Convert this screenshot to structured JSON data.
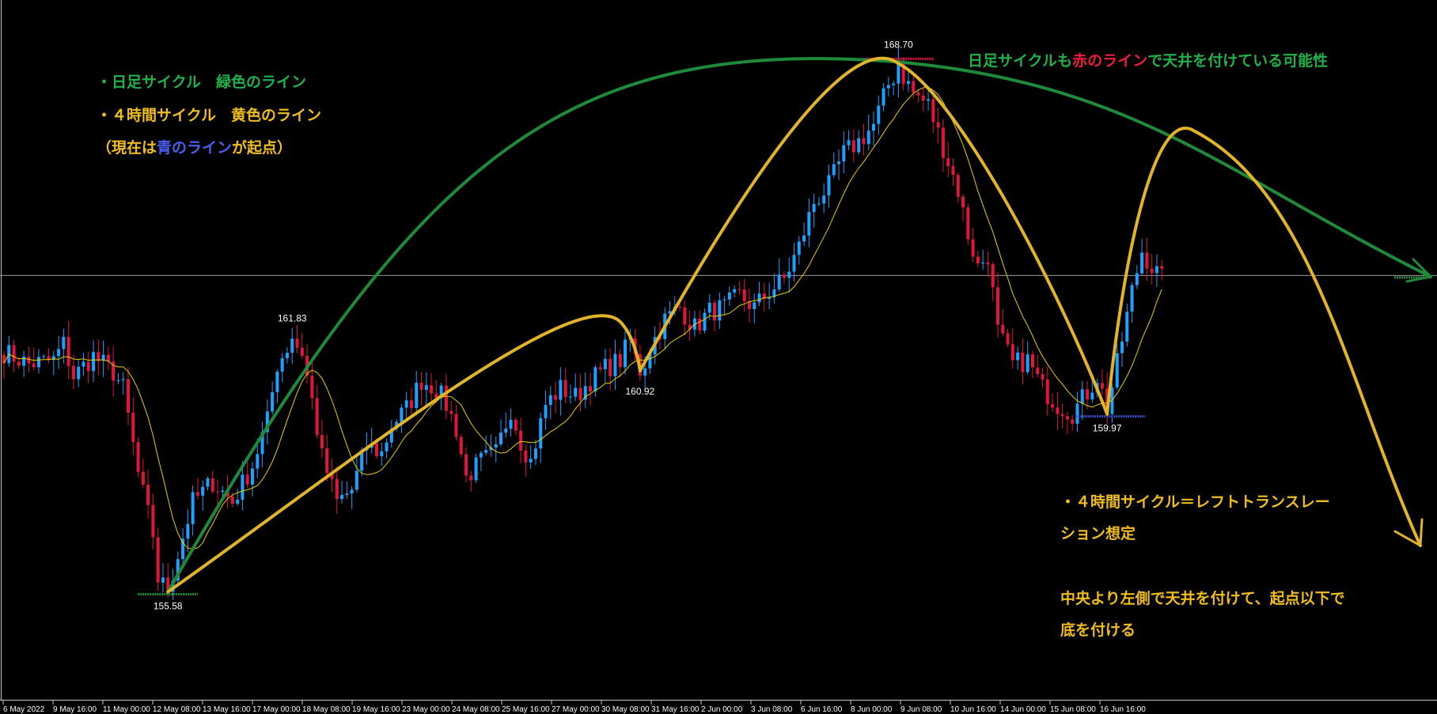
{
  "chart_data": {
    "type": "candlestick",
    "instrument_timeframe": "4H",
    "x_tick_labels": [
      "6 May 2022",
      "9 May 16:00",
      "11 May 00:00",
      "12 May 08:00",
      "13 May 16:00",
      "17 May 00:00",
      "18 May 08:00",
      "19 May 16:00",
      "23 May 00:00",
      "24 May 08:00",
      "25 May 16:00",
      "27 May 00:00",
      "30 May 08:00",
      "31 May 16:00",
      "2 Jun 00:00",
      "3 Jun 08:00",
      "6 Jun 16:00",
      "8 Jun 00:00",
      "9 Jun 08:00",
      "10 Jun 16:00",
      "14 Jun 00:00",
      "15 Jun 08:00",
      "16 Jun 16:00"
    ],
    "ylim": [
      153.6,
      169.8
    ],
    "current_price": 163.4,
    "price_labels": [
      {
        "text": "168.70",
        "value": 168.7
      },
      {
        "text": "161.83",
        "value": 161.83
      },
      {
        "text": "160.92",
        "value": 160.92
      },
      {
        "text": "155.58",
        "value": 155.58
      },
      {
        "text": "159.97",
        "value": 159.97
      }
    ],
    "key_points": {
      "low_a": {
        "bar": 33,
        "price": 155.58
      },
      "peak_b": {
        "bar": 58,
        "price": 161.83
      },
      "low_c": {
        "bar": 128,
        "price": 160.92
      },
      "high_d": {
        "bar": 180,
        "price": 168.7
      },
      "low_e": {
        "bar": 222,
        "price": 159.97
      }
    },
    "series": [
      {
        "name": "ohlc",
        "close_path": [
          [
            0,
            161.5
          ],
          [
            5,
            161.2
          ],
          [
            10,
            161.3
          ],
          [
            12,
            161.7
          ],
          [
            14,
            160.9
          ],
          [
            18,
            161.4
          ],
          [
            22,
            161.0
          ],
          [
            24,
            160.6
          ],
          [
            27,
            158.5
          ],
          [
            30,
            157.0
          ],
          [
            31,
            155.9
          ],
          [
            33,
            155.6
          ],
          [
            35,
            156.5
          ],
          [
            38,
            157.8
          ],
          [
            42,
            158.3
          ],
          [
            46,
            157.8
          ],
          [
            50,
            158.7
          ],
          [
            53,
            159.8
          ],
          [
            55,
            161.2
          ],
          [
            58,
            161.8
          ],
          [
            60,
            161.5
          ],
          [
            62,
            160.3
          ],
          [
            64,
            158.9
          ],
          [
            67,
            157.8
          ],
          [
            70,
            158.1
          ],
          [
            73,
            159.2
          ],
          [
            76,
            159.0
          ],
          [
            78,
            159.7
          ],
          [
            81,
            160.1
          ],
          [
            84,
            160.8
          ],
          [
            87,
            160.6
          ],
          [
            89,
            160.2
          ],
          [
            91,
            159.6
          ],
          [
            93,
            158.4
          ],
          [
            96,
            158.8
          ],
          [
            99,
            159.0
          ],
          [
            102,
            160.1
          ],
          [
            104,
            159.3
          ],
          [
            106,
            158.8
          ],
          [
            109,
            160.2
          ],
          [
            112,
            160.6
          ],
          [
            115,
            160.4
          ],
          [
            118,
            160.8
          ],
          [
            121,
            161.1
          ],
          [
            124,
            161.3
          ],
          [
            126,
            161.8
          ],
          [
            128,
            160.9
          ],
          [
            130,
            161.6
          ],
          [
            133,
            162.3
          ],
          [
            136,
            162.6
          ],
          [
            139,
            162.1
          ],
          [
            142,
            162.5
          ],
          [
            145,
            162.6
          ],
          [
            148,
            162.9
          ],
          [
            151,
            162.6
          ],
          [
            154,
            163.0
          ],
          [
            157,
            163.3
          ],
          [
            160,
            164.1
          ],
          [
            163,
            165.2
          ],
          [
            166,
            165.6
          ],
          [
            169,
            166.4
          ],
          [
            172,
            166.7
          ],
          [
            175,
            167.1
          ],
          [
            178,
            168.1
          ],
          [
            180,
            168.5
          ],
          [
            183,
            167.9
          ],
          [
            186,
            167.6
          ],
          [
            188,
            166.9
          ],
          [
            190,
            166.2
          ],
          [
            192,
            165.5
          ],
          [
            194,
            164.4
          ],
          [
            196,
            163.6
          ],
          [
            198,
            163.9
          ],
          [
            200,
            162.0
          ],
          [
            203,
            161.2
          ],
          [
            206,
            161.3
          ],
          [
            209,
            160.6
          ],
          [
            212,
            160.2
          ],
          [
            215,
            160.0
          ],
          [
            218,
            160.5
          ],
          [
            220,
            160.9
          ],
          [
            222,
            160.1
          ],
          [
            224,
            161.2
          ],
          [
            227,
            163.0
          ],
          [
            229,
            164.0
          ],
          [
            231,
            163.6
          ],
          [
            233,
            163.3
          ]
        ]
      },
      {
        "name": "moving_average",
        "color": "#e8d000"
      }
    ]
  },
  "annotations": {
    "daily_cycle_label": "・日足サイクル　緑色のライン",
    "four_hour_cycle_label": "・４時間サイクル　黄色のライン",
    "current_start_prefix": "（現在は",
    "current_start_blue": "青のライン",
    "current_start_suffix": "が起点）",
    "top_note_prefix": "日足サイクルも",
    "top_note_red": "赤のライン",
    "top_note_suffix": "で天井を付けている可能性",
    "right_note_line1": "・４時間サイクル＝レフトトランスレー",
    "right_note_line2": "ション想定",
    "right_note_line3": "中央より左側で天井を付けて、起点以下で",
    "right_note_line4": "底を付ける"
  },
  "colors": {
    "background": "#000000",
    "bull_candle": "#1ea0ff",
    "bear_candle": "#e0163c",
    "ma_line": "#e8d000",
    "daily_cycle": "#1f8a3a",
    "four_hour_cycle": "#e1b42a",
    "blue_line": "#3a4fc8",
    "red_line": "#e0163c",
    "green_text": "#1fb24a",
    "yellow_text": "#f0be1e",
    "blue_text": "#4a5ef0",
    "red_text": "#f01c3c",
    "price_line": "#9a9a9a",
    "axis": "#c8c8c8"
  }
}
